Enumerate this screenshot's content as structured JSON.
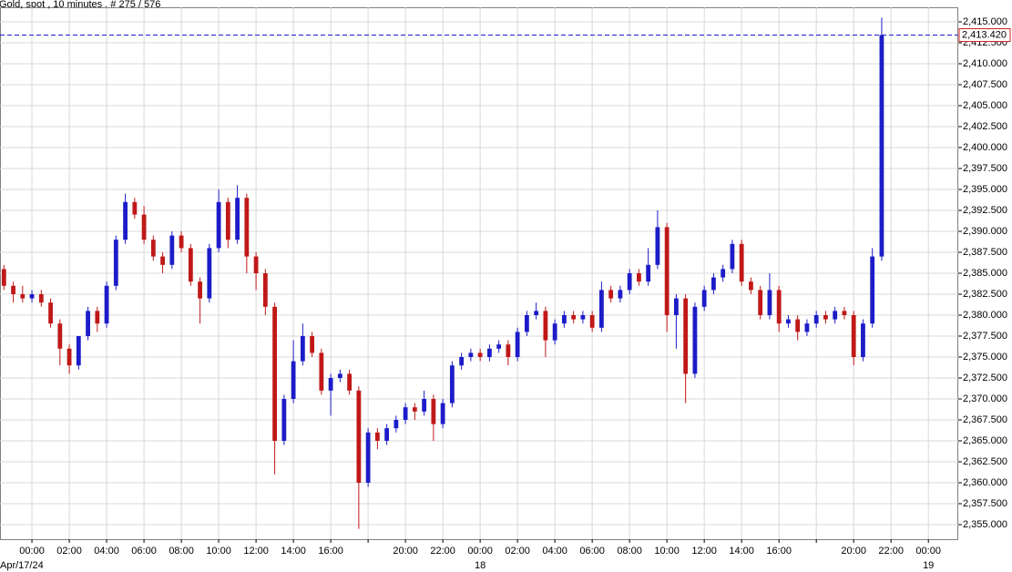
{
  "chart_data": {
    "type": "candlestick",
    "title": "Gold, spot , 10 minutes , # 275 / 576",
    "x": [
      -1.5,
      -1,
      -0.5,
      0,
      0.5,
      1,
      1.5,
      2,
      2.5,
      3,
      3.5,
      4,
      4.5,
      5,
      5.5,
      6,
      6.5,
      7,
      7.5,
      8,
      8.5,
      9,
      9.5,
      10,
      10.5,
      11,
      11.5,
      12,
      12.5,
      13,
      13.5,
      14,
      14.5,
      15,
      15.5,
      16,
      16.5,
      17,
      17.5,
      18,
      18.5,
      19,
      19.5,
      20,
      20.5,
      21,
      21.5,
      22,
      22.5,
      23,
      23.5,
      24,
      24.5,
      25,
      25.5,
      26,
      26.5,
      27,
      27.5,
      28,
      28.5,
      29,
      29.5,
      30,
      30.5,
      31,
      31.5,
      32,
      32.5,
      33,
      33.5,
      34,
      34.5,
      35,
      35.5,
      36,
      36.5,
      37,
      37.5,
      38,
      38.5,
      39,
      39.5,
      40,
      40.5,
      41,
      41.5,
      42,
      42.5,
      43,
      43.5,
      44,
      44.5,
      45,
      45.5
    ],
    "open": [
      2385.5,
      2383.5,
      2382.5,
      2382,
      2382.5,
      2381.5,
      2379,
      2376,
      2374,
      2377.5,
      2380.5,
      2379,
      2383.5,
      2389,
      2393.5,
      2392,
      2389,
      2387,
      2386,
      2389.5,
      2388,
      2384,
      2382,
      2388,
      2393.5,
      2389,
      2394,
      2387,
      2385,
      2381,
      2365,
      2370,
      2374.5,
      2377.5,
      2375.5,
      2371,
      2372.5,
      2373,
      2371,
      2360,
      2366,
      2365,
      2366.5,
      2367.5,
      2369,
      2368.5,
      2370,
      2367,
      2369.5,
      2374,
      2375,
      2375.5,
      2375,
      2376,
      2376.5,
      2375,
      2378,
      2380,
      2380.5,
      2377,
      2379,
      2380,
      2379.5,
      2380,
      2378.5,
      2383,
      2382,
      2383,
      2385,
      2384,
      2386,
      2390.5,
      2380,
      2382,
      2373,
      2381,
      2383,
      2384.5,
      2385.5,
      2388.5,
      2384,
      2383,
      2380,
      2383,
      2379,
      2379.5,
      2378,
      2379,
      2380,
      2379.5,
      2380.5,
      2380,
      2375,
      2379,
      2387
    ],
    "high": [
      2386,
      2384,
      2383.5,
      2383,
      2383,
      2382,
      2379.5,
      2376.5,
      2377.5,
      2381,
      2381,
      2384,
      2389.5,
      2394.5,
      2394,
      2393,
      2389.5,
      2387.5,
      2390,
      2390,
      2388.5,
      2384.5,
      2388.5,
      2395,
      2394,
      2395.5,
      2394.5,
      2387.5,
      2385.5,
      2381.5,
      2370.5,
      2377,
      2379,
      2378,
      2376,
      2373,
      2373.5,
      2373.5,
      2371.5,
      2366.5,
      2366.5,
      2367,
      2368,
      2369.5,
      2369.5,
      2371,
      2370.5,
      2370,
      2374.5,
      2375.5,
      2376,
      2376,
      2376.5,
      2377,
      2377,
      2378.5,
      2380.5,
      2381.5,
      2381,
      2379.5,
      2380.5,
      2380.5,
      2380.5,
      2380.5,
      2384,
      2383.5,
      2383.5,
      2385.5,
      2385.5,
      2388,
      2392.5,
      2391,
      2382.5,
      2382.5,
      2381.5,
      2383.5,
      2385,
      2386,
      2389,
      2389,
      2384.5,
      2383.5,
      2385,
      2383.5,
      2380,
      2380,
      2379.5,
      2380.5,
      2380.5,
      2381,
      2381,
      2380.5,
      2379.5,
      2388,
      2415.5
    ],
    "low": [
      2383,
      2381.5,
      2381.5,
      2381.5,
      2381,
      2378.5,
      2374,
      2373,
      2373.5,
      2377,
      2378,
      2378.5,
      2383,
      2388.5,
      2391.5,
      2388.5,
      2386.5,
      2385,
      2385.5,
      2387.5,
      2383.5,
      2379,
      2381.5,
      2387.5,
      2388,
      2388.5,
      2385,
      2383,
      2380,
      2361,
      2364.5,
      2369.5,
      2374,
      2375,
      2370.5,
      2368,
      2372,
      2370.5,
      2354.5,
      2359.5,
      2364,
      2364.5,
      2366,
      2367,
      2367.5,
      2368,
      2365,
      2366.5,
      2369,
      2373.5,
      2374.5,
      2374.5,
      2374.5,
      2375.5,
      2374,
      2374.5,
      2377.5,
      2379.5,
      2375,
      2376.5,
      2378.5,
      2379,
      2379,
      2378,
      2378,
      2381.5,
      2381.5,
      2382.5,
      2383.5,
      2383.5,
      2385.5,
      2378,
      2376,
      2369.5,
      2372.5,
      2380.5,
      2382.5,
      2384,
      2385,
      2383.5,
      2382.5,
      2379.5,
      2379.5,
      2378,
      2378.5,
      2377,
      2377.5,
      2378.5,
      2379,
      2379,
      2379.5,
      2374,
      2374.5,
      2378.5,
      2386.5
    ],
    "close": [
      2383.5,
      2382.5,
      2382,
      2382.5,
      2381.5,
      2379,
      2376,
      2374,
      2377.5,
      2380.5,
      2379,
      2383.5,
      2389,
      2393.5,
      2392,
      2389,
      2387,
      2386,
      2389.5,
      2388,
      2384,
      2382,
      2388,
      2393.5,
      2389,
      2394,
      2387,
      2385,
      2381,
      2365,
      2370,
      2374.5,
      2377.5,
      2375.5,
      2371,
      2372.5,
      2373,
      2371,
      2360,
      2366,
      2365,
      2366.5,
      2367.5,
      2369,
      2368.5,
      2370,
      2367,
      2369.5,
      2374,
      2375,
      2375.5,
      2375,
      2376,
      2376.5,
      2375,
      2378,
      2380,
      2380.5,
      2377,
      2379,
      2380,
      2379.5,
      2380,
      2378.5,
      2383,
      2382,
      2383,
      2385,
      2384,
      2386,
      2390.5,
      2380,
      2382,
      2373,
      2381,
      2383,
      2384.5,
      2385.5,
      2388.5,
      2384,
      2383,
      2380,
      2383,
      2379,
      2379.5,
      2378,
      2379,
      2380,
      2379.5,
      2380.5,
      2380,
      2375,
      2379,
      2387,
      2413.42
    ],
    "up_color": "#1c1cc8",
    "down_color": "#c01818",
    "last_price": {
      "value": 2413.42,
      "label": "2,413.420",
      "color": "#1c1cc8",
      "label_border": "#d02020"
    },
    "xlim": [
      -1.71,
      49.6
    ],
    "ylim": [
      2353.26,
      2416.74
    ],
    "grid": true,
    "xticks": [
      {
        "value": 0,
        "label": "00:00"
      },
      {
        "value": 2,
        "label": "02:00"
      },
      {
        "value": 4,
        "label": "04:00"
      },
      {
        "value": 6,
        "label": "06:00"
      },
      {
        "value": 8,
        "label": "08:00"
      },
      {
        "value": 10,
        "label": "10:00"
      },
      {
        "value": 12,
        "label": "12:00"
      },
      {
        "value": 14,
        "label": "14:00"
      },
      {
        "value": 16,
        "label": "16:00"
      },
      {
        "value": 20,
        "label": "20:00"
      },
      {
        "value": 22,
        "label": "22:00"
      },
      {
        "value": 24,
        "label": "00:00"
      },
      {
        "value": 26,
        "label": "02:00"
      },
      {
        "value": 28,
        "label": "04:00"
      },
      {
        "value": 30,
        "label": "06:00"
      },
      {
        "value": 32,
        "label": "08:00"
      },
      {
        "value": 34,
        "label": "10:00"
      },
      {
        "value": 36,
        "label": "12:00"
      },
      {
        "value": 38,
        "label": "14:00"
      },
      {
        "value": 40,
        "label": "16:00"
      },
      {
        "value": 44,
        "label": "20:00"
      },
      {
        "value": 46,
        "label": "22:00"
      },
      {
        "value": 48,
        "label": "00:00"
      }
    ],
    "gridx": [
      18,
      42
    ],
    "date_labels": [
      {
        "value": 0,
        "label": "Apr/17/24"
      },
      {
        "value": 24,
        "label": "18"
      },
      {
        "value": 48,
        "label": "19"
      }
    ],
    "yticks": [
      {
        "value": 2355,
        "label": "2,355.000"
      },
      {
        "value": 2357.5,
        "label": "2,357.500"
      },
      {
        "value": 2360,
        "label": "2,360.000"
      },
      {
        "value": 2362.5,
        "label": "2,362.500"
      },
      {
        "value": 2365,
        "label": "2,365.000"
      },
      {
        "value": 2367.5,
        "label": "2,367.500"
      },
      {
        "value": 2370,
        "label": "2,370.000"
      },
      {
        "value": 2372.5,
        "label": "2,372.500"
      },
      {
        "value": 2375,
        "label": "2,375.000"
      },
      {
        "value": 2377.5,
        "label": "2,377.500"
      },
      {
        "value": 2380,
        "label": "2,380.000"
      },
      {
        "value": 2382.5,
        "label": "2,382.500"
      },
      {
        "value": 2385,
        "label": "2,385.000"
      },
      {
        "value": 2387.5,
        "label": "2,387.500"
      },
      {
        "value": 2390,
        "label": "2,390.000"
      },
      {
        "value": 2392.5,
        "label": "2,392.500"
      },
      {
        "value": 2395,
        "label": "2,395.000"
      },
      {
        "value": 2397.5,
        "label": "2,397.500"
      },
      {
        "value": 2400,
        "label": "2,400.000"
      },
      {
        "value": 2402.5,
        "label": "2,402.500"
      },
      {
        "value": 2405,
        "label": "2,405.000"
      },
      {
        "value": 2407.5,
        "label": "2,407.500"
      },
      {
        "value": 2410,
        "label": "2,410.000"
      },
      {
        "value": 2412.5,
        "label": "2,412.500"
      },
      {
        "value": 2415,
        "label": "2,415.000"
      }
    ]
  }
}
